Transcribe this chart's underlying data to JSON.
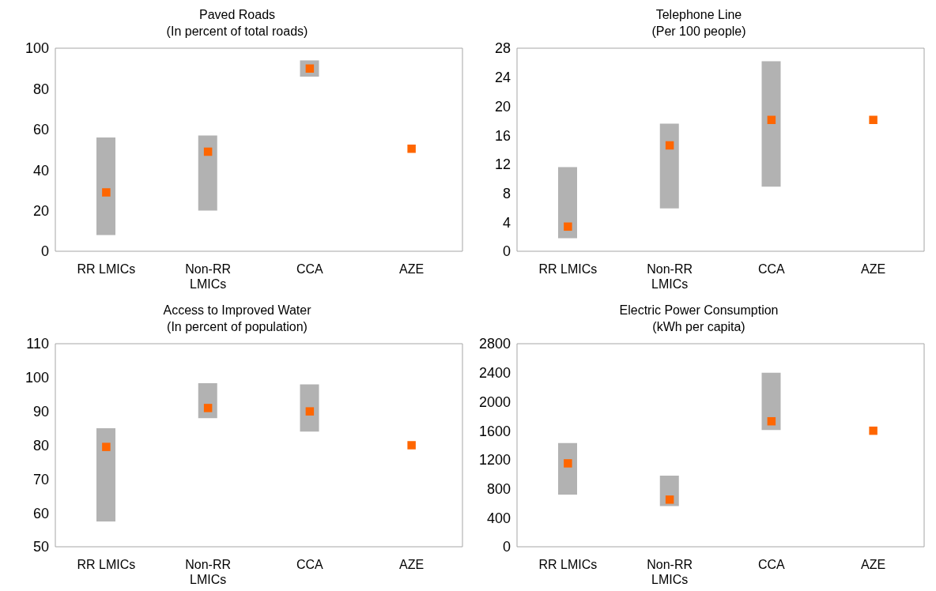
{
  "chart_data": [
    {
      "type": "bar",
      "title": "Paved Roads",
      "subtitle": "(In percent of total roads)",
      "categories": [
        "RR LMICs",
        "Non-RR LMICs",
        "CCA",
        "AZE"
      ],
      "ylim": [
        0,
        100
      ],
      "yticks": [
        0,
        20,
        40,
        60,
        80,
        100
      ],
      "grid": false,
      "legend": false,
      "series": [
        {
          "type": "bar",
          "color": "#b2b2b2",
          "base": [
            8,
            20,
            86,
            null
          ],
          "values": [
            48,
            37,
            8,
            null
          ]
        },
        {
          "type": "scatter",
          "marker": "square",
          "color": "#ff6600",
          "x": [
            "RR LMICs",
            "Non-RR LMICs",
            "CCA",
            "AZE"
          ],
          "values": [
            29,
            49,
            90,
            50.5
          ]
        }
      ]
    },
    {
      "type": "bar",
      "title": "Telephone Line",
      "subtitle": "(Per 100 people)",
      "categories": [
        "RR LMICs",
        "Non-RR LMICs",
        "CCA",
        "AZE"
      ],
      "ylim": [
        0,
        28
      ],
      "yticks": [
        0,
        4,
        8,
        12,
        16,
        20,
        24,
        28
      ],
      "grid": false,
      "legend": false,
      "series": [
        {
          "type": "bar",
          "color": "#b2b2b2",
          "base": [
            1.8,
            5.9,
            8.9,
            null
          ],
          "values": [
            9.8,
            11.7,
            17.3,
            null
          ]
        },
        {
          "type": "scatter",
          "marker": "square",
          "color": "#ff6600",
          "x": [
            "RR LMICs",
            "Non-RR LMICs",
            "CCA",
            "AZE"
          ],
          "values": [
            3.4,
            14.6,
            18.1,
            18.1
          ]
        }
      ]
    },
    {
      "type": "bar",
      "title": "Access to Improved Water",
      "subtitle": "(In percent of population)",
      "categories": [
        "RR LMICs",
        "Non-RR LMICs",
        "CCA",
        "AZE"
      ],
      "ylim": [
        50,
        110
      ],
      "yticks": [
        50,
        60,
        70,
        80,
        90,
        100,
        110
      ],
      "grid": false,
      "legend": false,
      "series": [
        {
          "type": "bar",
          "color": "#b2b2b2",
          "base": [
            57.5,
            88,
            84,
            null
          ],
          "values": [
            27.5,
            10.3,
            14,
            null
          ]
        },
        {
          "type": "scatter",
          "marker": "square",
          "color": "#ff6600",
          "x": [
            "RR LMICs",
            "Non-RR LMICs",
            "CCA",
            "AZE"
          ],
          "values": [
            79.5,
            91,
            90,
            80
          ]
        }
      ]
    },
    {
      "type": "bar",
      "title": "Electric Power Consumption",
      "subtitle": "(kWh per capita)",
      "categories": [
        "RR LMICs",
        "Non-RR LMICs",
        "CCA",
        "AZE"
      ],
      "ylim": [
        0,
        2800
      ],
      "yticks": [
        0,
        400,
        800,
        1200,
        1600,
        2000,
        2400,
        2800
      ],
      "grid": false,
      "legend": false,
      "series": [
        {
          "type": "bar",
          "color": "#b2b2b2",
          "base": [
            720,
            560,
            1610,
            null
          ],
          "values": [
            710,
            420,
            790,
            null
          ]
        },
        {
          "type": "scatter",
          "marker": "square",
          "color": "#ff6600",
          "x": [
            "RR LMICs",
            "Non-RR LMICs",
            "CCA",
            "AZE"
          ],
          "values": [
            1150,
            650,
            1730,
            1600
          ]
        }
      ]
    }
  ]
}
